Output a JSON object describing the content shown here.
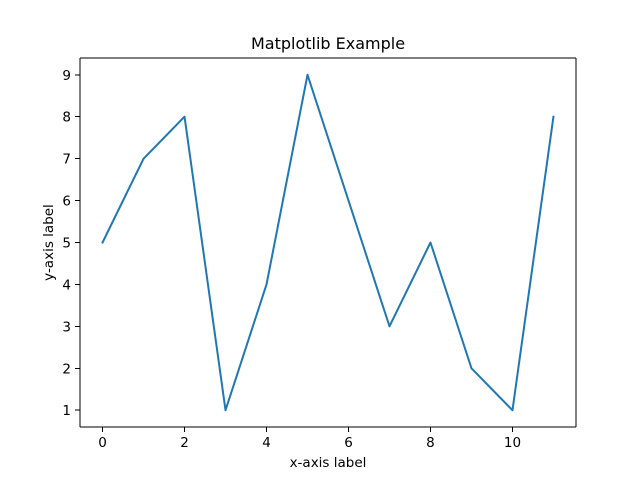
{
  "chart_data": {
    "type": "line",
    "title": "Matplotlib Example",
    "xlabel": "x-axis label",
    "ylabel": "y-axis label",
    "xlim": [
      -0.55,
      11.55
    ],
    "ylim": [
      0.6,
      9.4
    ],
    "xticks": [
      0,
      2,
      4,
      6,
      8,
      10
    ],
    "yticks": [
      1,
      2,
      3,
      4,
      5,
      6,
      7,
      8,
      9
    ],
    "grid": false,
    "x": [
      0,
      1,
      2,
      3,
      4,
      5,
      6,
      7,
      8,
      9,
      10,
      11
    ],
    "series": [
      {
        "values": [
          5,
          7,
          8,
          1,
          4,
          9,
          6,
          3,
          5,
          2,
          1,
          8
        ],
        "color": "#1f77b4"
      }
    ]
  }
}
